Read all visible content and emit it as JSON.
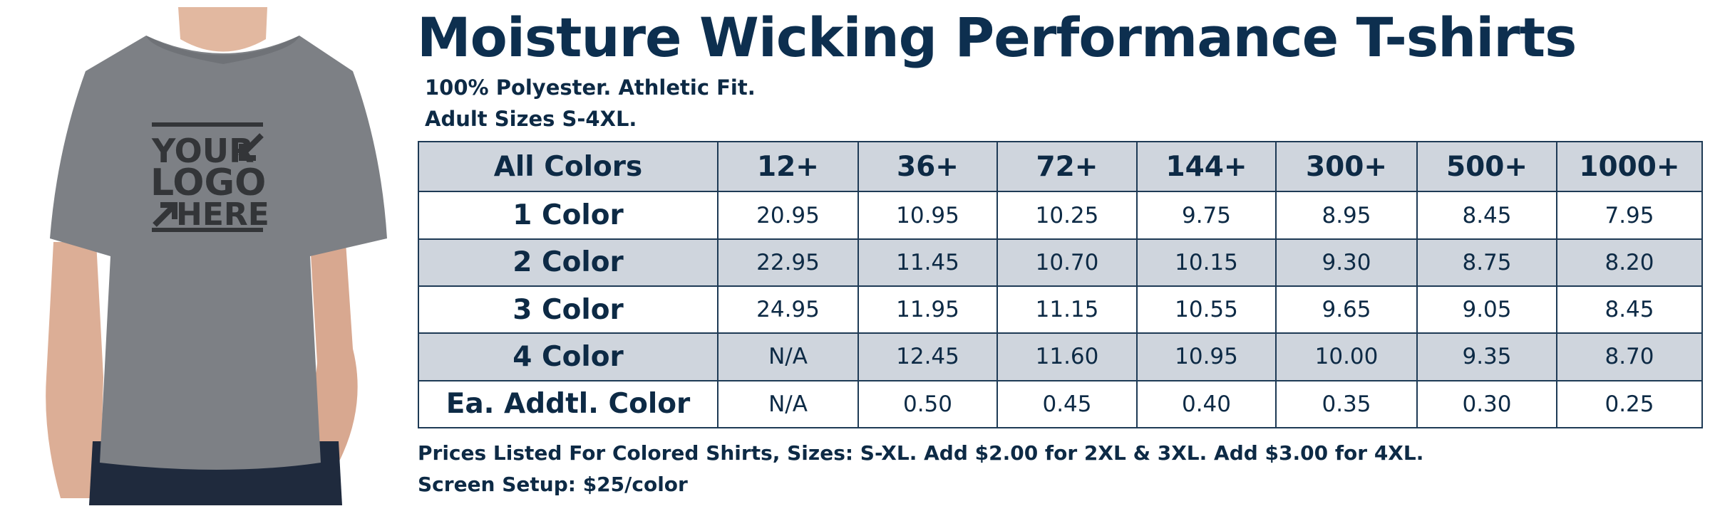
{
  "title": "Moisture Wicking Performance T-shirts",
  "subtitle_lines": [
    "100% Polyester.  Athletic Fit.",
    "Adult Sizes S-4XL."
  ],
  "product_image": {
    "description_icon": "gray-tshirt-model-icon",
    "logo_lines": [
      "YOUR",
      "LOGO",
      "HERE"
    ],
    "shirt_color": "#7d8085",
    "logo_color": "#333538"
  },
  "table": {
    "header_label": "All Colors",
    "quantities": [
      "12+",
      "36+",
      "72+",
      "144+",
      "300+",
      "500+",
      "1000+"
    ],
    "rows": [
      {
        "label": "1 Color",
        "prices": [
          "20.95",
          "10.95",
          "10.25",
          "9.75",
          "8.95",
          "8.45",
          "7.95"
        ]
      },
      {
        "label": "2 Color",
        "prices": [
          "22.95",
          "11.45",
          "10.70",
          "10.15",
          "9.30",
          "8.75",
          "8.20"
        ]
      },
      {
        "label": "3 Color",
        "prices": [
          "24.95",
          "11.95",
          "11.15",
          "10.55",
          "9.65",
          "9.05",
          "8.45"
        ]
      },
      {
        "label": "4 Color",
        "prices": [
          "N/A",
          "12.45",
          "11.60",
          "10.95",
          "10.00",
          "9.35",
          "8.70"
        ]
      },
      {
        "label": "Ea. Addtl. Color",
        "prices": [
          "N/A",
          "0.50",
          "0.45",
          "0.40",
          "0.35",
          "0.30",
          "0.25"
        ]
      }
    ]
  },
  "notes": [
    "Prices Listed For Colored Shirts, Sizes: S-XL.  Add $2.00 for 2XL & 3XL.  Add $3.00 for 4XL.",
    "Screen Setup: $25/color"
  ],
  "colors": {
    "navy": "#0d2f4f",
    "row_shade": "#cfd5dd",
    "border": "#1e3a55"
  }
}
